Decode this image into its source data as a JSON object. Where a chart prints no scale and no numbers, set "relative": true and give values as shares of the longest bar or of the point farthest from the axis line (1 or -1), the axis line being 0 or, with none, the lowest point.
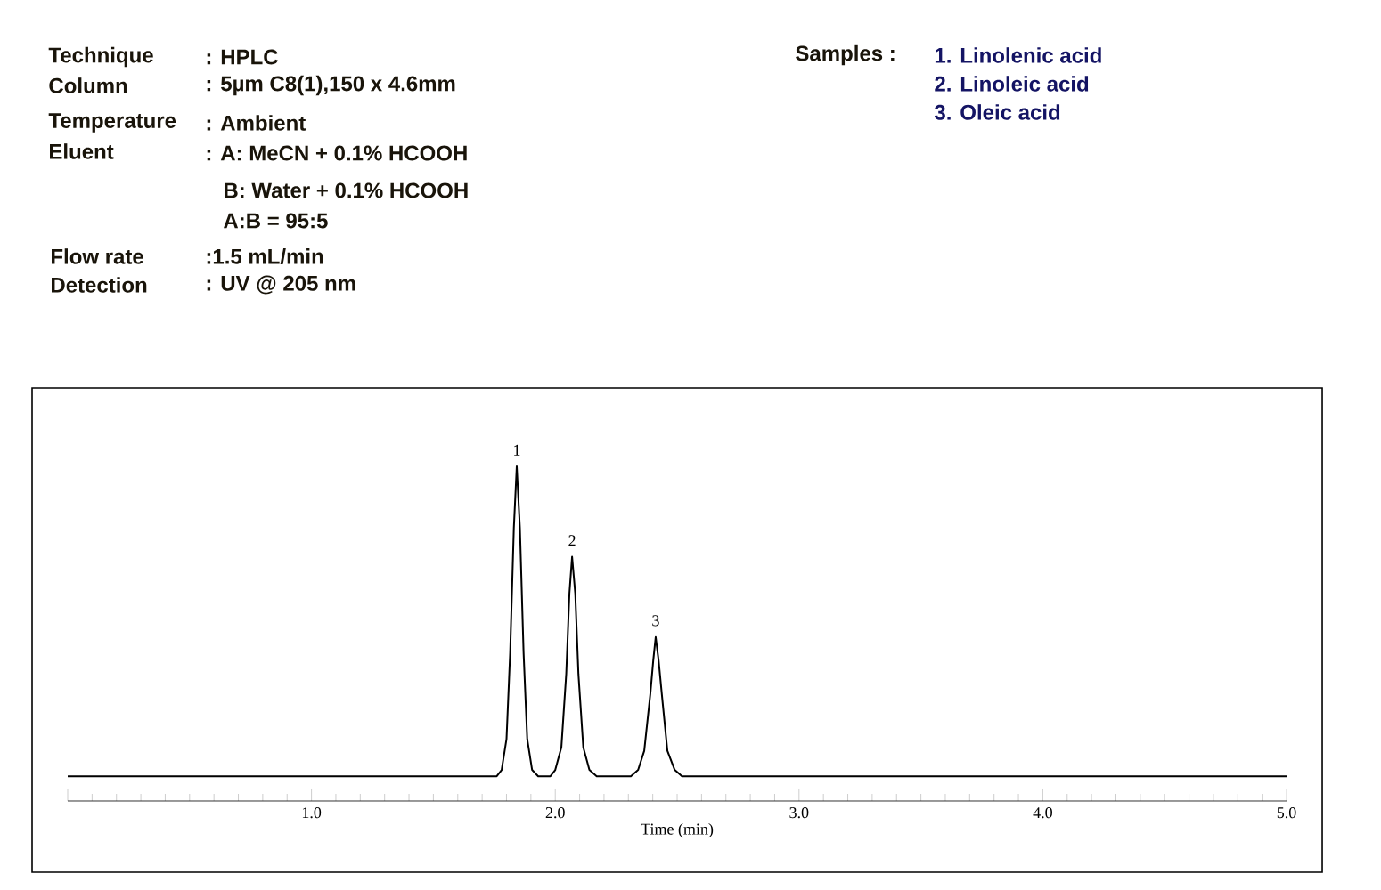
{
  "chart_data": {
    "type": "line",
    "relative": true,
    "xlabel": "Time (min)",
    "xlim": [
      0,
      5
    ],
    "xticks": [
      {
        "value": 0,
        "label": null
      },
      {
        "value": 1,
        "label": "1.0"
      },
      {
        "value": 2,
        "label": "2.0"
      },
      {
        "value": 3,
        "label": "3.0"
      },
      {
        "value": 4,
        "label": "4.0"
      },
      {
        "value": 5,
        "label": "5.0"
      }
    ],
    "series": [
      {
        "color": "#000000",
        "x": [
          0,
          1.76,
          1.78,
          1.8,
          1.815,
          1.83,
          1.842,
          1.855,
          1.87,
          1.885,
          1.905,
          1.93,
          1.98,
          2.0,
          2.025,
          2.045,
          2.058,
          2.069,
          2.082,
          2.095,
          2.115,
          2.14,
          2.17,
          2.31,
          2.34,
          2.365,
          2.39,
          2.402,
          2.412,
          2.424,
          2.437,
          2.46,
          2.49,
          2.52,
          5
        ],
        "values": [
          0.074,
          0.074,
          0.093,
          0.185,
          0.444,
          0.815,
          1,
          0.815,
          0.444,
          0.185,
          0.093,
          0.074,
          0.074,
          0.093,
          0.16,
          0.38,
          0.62,
          0.73,
          0.62,
          0.38,
          0.16,
          0.093,
          0.074,
          0.074,
          0.093,
          0.15,
          0.32,
          0.42,
          0.49,
          0.42,
          0.32,
          0.15,
          0.093,
          0.074,
          0.074
        ]
      }
    ],
    "annotations": [
      "Technique",
      ": HPLC",
      "Column",
      ": 5µm C8(1),150 x 4.6mm",
      "Temperature",
      ": Ambient",
      "Eluent",
      ":  A: MeCN + 0.1% HCOOH",
      "B: Water + 0.1% HCOOH",
      "A:B = 95:5",
      "Flow rate",
      ":1.5 mL/min",
      "Detection",
      ": UV @ 205 nm",
      "Samples :",
      "1. Linolenic acid",
      "2. Linoleic acid",
      "3. Oleic acid",
      {
        "text": "1",
        "x": 1.842,
        "y": 1
      },
      {
        "text": "2",
        "x": 2.069,
        "y": 0.73
      },
      {
        "text": "3",
        "x": 2.412,
        "y": 0.49
      }
    ]
  }
}
